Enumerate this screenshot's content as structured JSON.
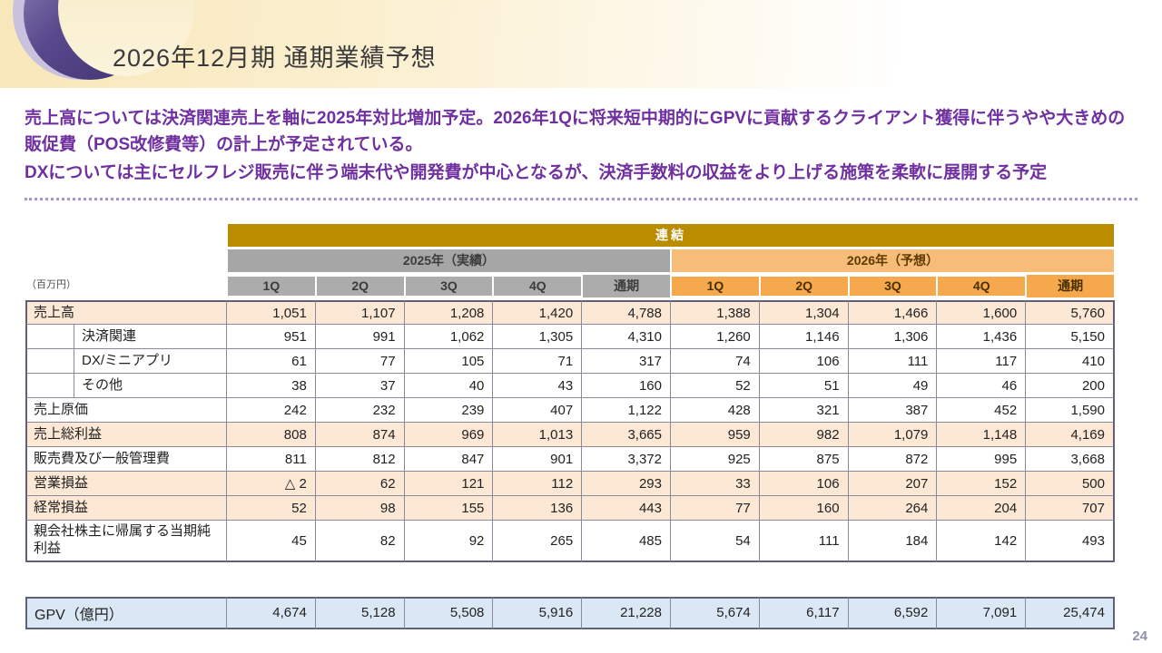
{
  "slide": {
    "title": "2026年12月期 通期業績予想",
    "page_number": "24"
  },
  "summary": {
    "paragraph1": "売上高については決済関連売上を軸に2025年対比増加予定。2026年1Qに将来短中期的にGPVに貢献するクライアント獲得に伴うやや大きめの販促費（POS改修費等）の計上が予定されている。",
    "paragraph2": "DXについては主にセルフレジ販売に伴う端末代や開発費が中心となるが、決済手数料の収益をより上げる施策を柔軟に展開する予定"
  },
  "table": {
    "unit_label": "（百万円）",
    "consolidated_header": "連結",
    "column_groups": [
      {
        "label": "2025年（実績）",
        "key": "y2025"
      },
      {
        "label": "2026年（予想）",
        "key": "y2026"
      }
    ],
    "quarter_headers": [
      "1Q",
      "2Q",
      "3Q",
      "4Q",
      "通期"
    ],
    "rows": [
      {
        "label": "売上高",
        "indent": false,
        "highlight": true,
        "y2025": [
          "1,051",
          "1,107",
          "1,208",
          "1,420",
          "4,788"
        ],
        "y2026": [
          "1,388",
          "1,304",
          "1,466",
          "1,600",
          "5,760"
        ]
      },
      {
        "label": "決済関連",
        "indent": true,
        "highlight": false,
        "y2025": [
          "951",
          "991",
          "1,062",
          "1,305",
          "4,310"
        ],
        "y2026": [
          "1,260",
          "1,146",
          "1,306",
          "1,436",
          "5,150"
        ]
      },
      {
        "label": "DX/ミニアプリ",
        "indent": true,
        "highlight": false,
        "y2025": [
          "61",
          "77",
          "105",
          "71",
          "317"
        ],
        "y2026": [
          "74",
          "106",
          "111",
          "117",
          "410"
        ]
      },
      {
        "label": "その他",
        "indent": true,
        "highlight": false,
        "y2025": [
          "38",
          "37",
          "40",
          "43",
          "160"
        ],
        "y2026": [
          "52",
          "51",
          "49",
          "46",
          "200"
        ]
      },
      {
        "label": "売上原価",
        "indent": false,
        "highlight": false,
        "y2025": [
          "242",
          "232",
          "239",
          "407",
          "1,122"
        ],
        "y2026": [
          "428",
          "321",
          "387",
          "452",
          "1,590"
        ]
      },
      {
        "label": "売上総利益",
        "indent": false,
        "highlight": true,
        "y2025": [
          "808",
          "874",
          "969",
          "1,013",
          "3,665"
        ],
        "y2026": [
          "959",
          "982",
          "1,079",
          "1,148",
          "4,169"
        ]
      },
      {
        "label": "販売費及び一般管理費",
        "indent": false,
        "highlight": false,
        "y2025": [
          "811",
          "812",
          "847",
          "901",
          "3,372"
        ],
        "y2026": [
          "925",
          "875",
          "872",
          "995",
          "3,668"
        ]
      },
      {
        "label": "営業損益",
        "indent": false,
        "highlight": true,
        "y2025": [
          "△ 2",
          "62",
          "121",
          "112",
          "293"
        ],
        "y2026": [
          "33",
          "106",
          "207",
          "152",
          "500"
        ]
      },
      {
        "label": "経常損益",
        "indent": false,
        "highlight": true,
        "y2025": [
          "52",
          "98",
          "155",
          "136",
          "443"
        ],
        "y2026": [
          "77",
          "160",
          "264",
          "204",
          "707"
        ]
      },
      {
        "label": "親会社株主に帰属する当期純利益",
        "indent": false,
        "highlight": false,
        "y2025": [
          "45",
          "82",
          "92",
          "265",
          "485"
        ],
        "y2026": [
          "54",
          "111",
          "184",
          "142",
          "493"
        ]
      }
    ]
  },
  "gpv": {
    "label": "GPV（億円）",
    "y2025": [
      "4,674",
      "5,128",
      "5,508",
      "5,916",
      "21,228"
    ],
    "y2026": [
      "5,674",
      "6,117",
      "6,592",
      "7,091",
      "25,474"
    ]
  },
  "colors": {
    "accent-purple": "#7030A0",
    "consolidated-bg": "#BA8C00",
    "actual-group-bg": "#A6A6A6",
    "actual-quarter-bg": "#ACACAC",
    "forecast-group-bg": "#F7BC77",
    "forecast-quarter-bg": "#F6A94C",
    "highlight-row-bg": "#FCE8D5",
    "gpv-row-bg": "#D9E8F4",
    "table-border": "#8A8A9E",
    "table-border-dark": "#5F5F78"
  }
}
